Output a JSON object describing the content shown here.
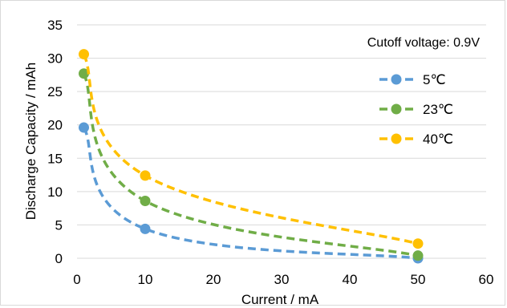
{
  "chart_data": {
    "type": "line",
    "xlabel": "Current / mA",
    "ylabel": "Discharge Capacity / mAh",
    "xlim": [
      0,
      60
    ],
    "ylim": [
      0,
      35
    ],
    "xticks": [
      0,
      10,
      20,
      30,
      40,
      50,
      60
    ],
    "yticks": [
      0,
      5,
      10,
      15,
      20,
      25,
      30,
      35
    ],
    "grid": "horizontal",
    "legend_position": "right",
    "annotation": "Cutoff voltage: 0.9V",
    "line_style": "dashed-smooth",
    "series": [
      {
        "name": "5℃",
        "color": "#5b9bd5",
        "x": [
          1,
          10,
          50
        ],
        "y": [
          19.6,
          4.4,
          0.0
        ]
      },
      {
        "name": "23℃",
        "color": "#70ad47",
        "x": [
          1,
          10,
          50
        ],
        "y": [
          27.7,
          8.6,
          0.4
        ]
      },
      {
        "name": "40℃",
        "color": "#ffc000",
        "x": [
          1,
          10,
          50
        ],
        "y": [
          30.6,
          12.4,
          2.2
        ]
      }
    ]
  }
}
